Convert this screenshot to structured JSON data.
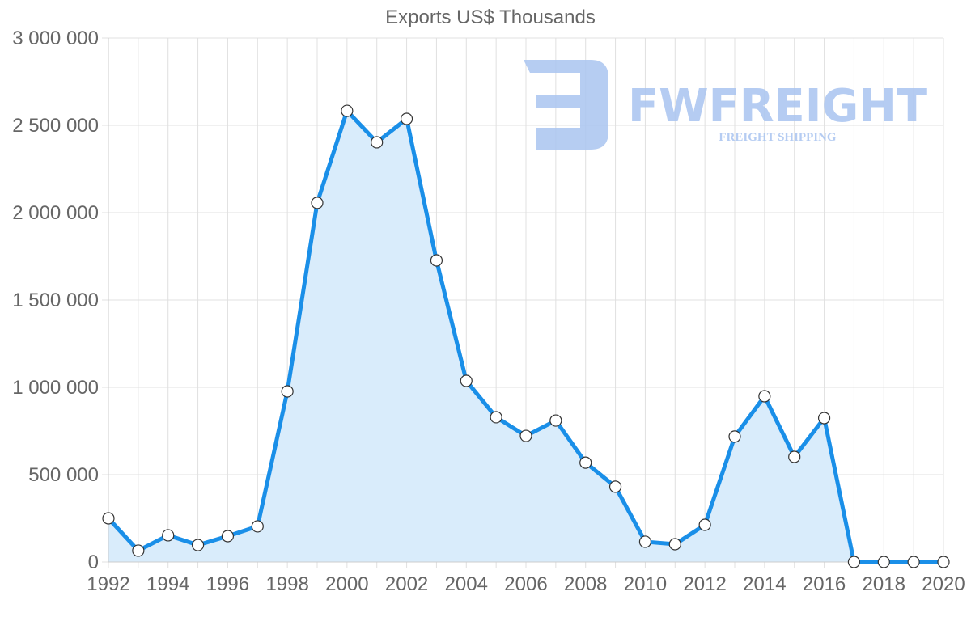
{
  "chart_data": {
    "type": "area",
    "title": "Exports US$ Thousands",
    "xlabel": "",
    "ylabel": "",
    "x": [
      1992,
      1993,
      1994,
      1995,
      1996,
      1997,
      1998,
      1999,
      2000,
      2001,
      2002,
      2003,
      2004,
      2005,
      2006,
      2007,
      2008,
      2009,
      2010,
      2011,
      2012,
      2013,
      2014,
      2015,
      2016,
      2017,
      2018,
      2019,
      2020
    ],
    "series": [
      {
        "name": "Exports US$ Thousands",
        "values": [
          250000,
          65000,
          153000,
          97000,
          148000,
          204000,
          977000,
          2056000,
          2583000,
          2403000,
          2537000,
          1727000,
          1037000,
          829000,
          722000,
          810000,
          569000,
          431000,
          116000,
          102000,
          213000,
          718000,
          949000,
          602000,
          824000,
          0,
          0,
          0,
          0
        ]
      }
    ],
    "ylim": [
      0,
      3000000
    ],
    "y_ticks": [
      "0",
      "500 000",
      "1 000 000",
      "1 500 000",
      "2 000 000",
      "2 500 000",
      "3 000 000"
    ],
    "x_ticks": [
      "1992",
      "1994",
      "1996",
      "1998",
      "2000",
      "2002",
      "2004",
      "2006",
      "2008",
      "2010",
      "2012",
      "2014",
      "2016",
      "2018",
      "2020"
    ],
    "grid": true,
    "legend": "none",
    "colors": {
      "line": "#1a8fe8",
      "fill": "#d9ecfb",
      "point_fill": "#ffffff",
      "point_stroke": "#333333",
      "grid": "#e0e0e0",
      "text": "#666666"
    }
  },
  "watermark": {
    "brand": "FWFREIGHT",
    "tagline": "FREIGHT SHIPPING",
    "color": "#a9c4f0"
  }
}
